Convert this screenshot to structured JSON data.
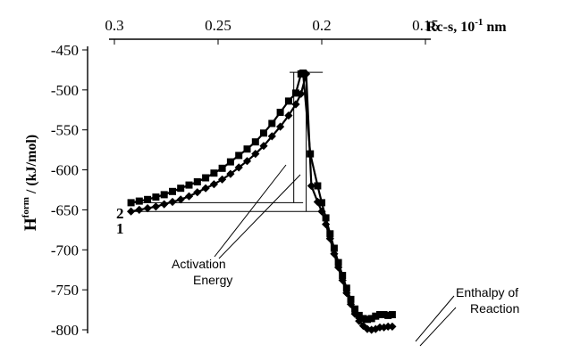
{
  "chart_data": {
    "type": "line",
    "x_axis": {
      "label_main": "Rc-s, 10",
      "label_sup": "-1",
      "label_unit": " nm",
      "reversed": true,
      "range": [
        0.15,
        0.3
      ],
      "ticks": [
        0.3,
        0.25,
        0.2,
        0.15
      ],
      "tick_labels": [
        "0.3",
        "0.25",
        "0.2",
        "0.15"
      ],
      "position": "top"
    },
    "y_axis": {
      "label_main": "H",
      "label_sup": "form",
      "label_rest": " / (kJ/mol)",
      "range": [
        -800,
        -450
      ],
      "ticks": [
        -450,
        -500,
        -550,
        -600,
        -650,
        -700,
        -750,
        -800
      ],
      "tick_labels": [
        "-450",
        "-500",
        "-550",
        "-600",
        "-650",
        "-700",
        "-750",
        "-800"
      ]
    },
    "series": [
      {
        "name": "2",
        "marker": "square",
        "x": [
          0.292,
          0.288,
          0.284,
          0.28,
          0.276,
          0.272,
          0.268,
          0.264,
          0.26,
          0.256,
          0.252,
          0.248,
          0.244,
          0.24,
          0.236,
          0.232,
          0.228,
          0.224,
          0.22,
          0.216,
          0.2125,
          0.21,
          0.209,
          0.2055,
          0.202,
          0.2,
          0.198,
          0.196,
          0.194,
          0.192,
          0.19,
          0.188,
          0.186,
          0.184,
          0.182,
          0.18,
          0.178,
          0.176,
          0.174,
          0.172,
          0.17,
          0.168,
          0.166
        ],
        "y": [
          -641,
          -639,
          -637,
          -634,
          -631,
          -627,
          -623,
          -619,
          -615,
          -610,
          -604,
          -598,
          -590,
          -582,
          -574,
          -565,
          -554,
          -542,
          -528,
          -514,
          -504,
          -480,
          -479,
          -580,
          -620,
          -641,
          -660,
          -680,
          -698,
          -716,
          -732,
          -748,
          -762,
          -774,
          -782,
          -786,
          -787,
          -786,
          -783,
          -781,
          -781,
          -782,
          -781
        ]
      },
      {
        "name": "1",
        "marker": "diamond",
        "x": [
          0.292,
          0.288,
          0.284,
          0.28,
          0.276,
          0.272,
          0.268,
          0.264,
          0.26,
          0.256,
          0.252,
          0.248,
          0.244,
          0.24,
          0.236,
          0.232,
          0.228,
          0.224,
          0.22,
          0.216,
          0.2125,
          0.21,
          0.2075,
          0.205,
          0.202,
          0.2,
          0.198,
          0.196,
          0.194,
          0.192,
          0.19,
          0.188,
          0.186,
          0.184,
          0.182,
          0.18,
          0.178,
          0.176,
          0.174,
          0.172,
          0.17,
          0.168,
          0.166
        ],
        "y": [
          -652,
          -650,
          -648,
          -646,
          -643,
          -640,
          -637,
          -633,
          -628,
          -623,
          -618,
          -612,
          -605,
          -597,
          -589,
          -580,
          -570,
          -558,
          -546,
          -532,
          -518,
          -505,
          -480,
          -620,
          -640,
          -652,
          -668,
          -686,
          -705,
          -722,
          -738,
          -754,
          -768,
          -780,
          -789,
          -795,
          -799,
          -800,
          -799,
          -797,
          -797,
          -796,
          -796
        ]
      }
    ],
    "guides": {
      "peak_y": -478,
      "series_2_level": -641,
      "series_1_level": -652
    },
    "annotations": {
      "activation_energy": [
        "Activation",
        "Energy"
      ],
      "enthalpy_of_reaction": [
        "Enthalpy of",
        "Reaction"
      ]
    },
    "grid": false,
    "legend": "none"
  }
}
